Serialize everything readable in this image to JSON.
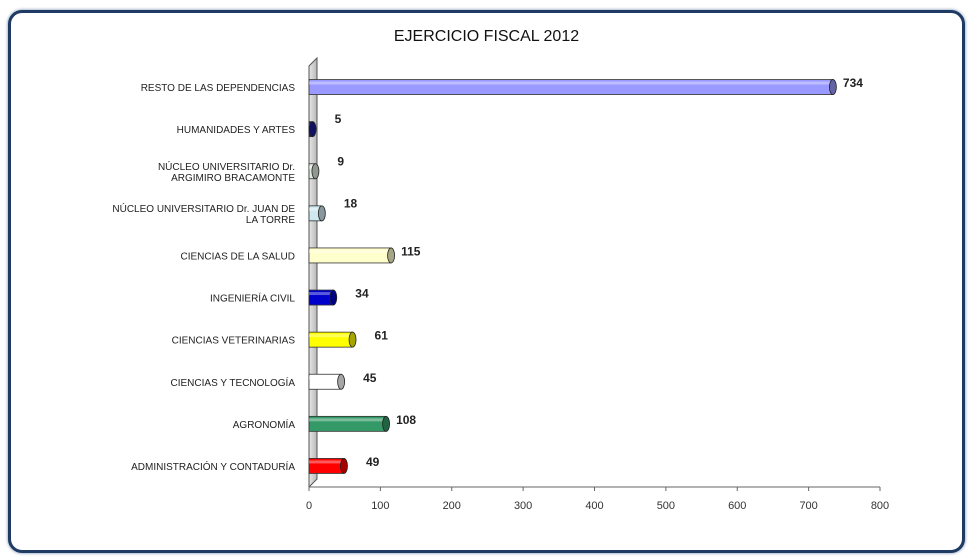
{
  "chart_data": {
    "type": "bar",
    "orientation": "horizontal",
    "title": "EJERCICIO FISCAL 2012",
    "categories": [
      [
        "RESTO DE LAS  DEPENDENCIAS"
      ],
      [
        "HUMANIDADES Y ARTES"
      ],
      [
        "NÚCLEO UNIVERSITARIO Dr.",
        "ARGIMIRO BRACAMONTE"
      ],
      [
        "NÚCLEO UNIVERSITARIO Dr. JUAN  DE",
        "LA TORRE"
      ],
      [
        "CIENCIAS DE LA SALUD"
      ],
      [
        "INGENIERÍA CIVIL"
      ],
      [
        "CIENCIAS VETERINARIAS"
      ],
      [
        "CIENCIAS Y TECNOLOGÍA"
      ],
      [
        "AGRONOMÍA"
      ],
      [
        "ADMINISTRACIÓN Y CONTADURÍA"
      ]
    ],
    "values": [
      734,
      5,
      9,
      18,
      115,
      34,
      61,
      45,
      108,
      49
    ],
    "colors": [
      "#9999ff",
      "#1a1a99",
      "#dfeadf",
      "#cfe8f0",
      "#ffffcc",
      "#0000cc",
      "#ffff00",
      "#ffffff",
      "#339966",
      "#ff0000"
    ],
    "xlim": [
      0,
      800
    ],
    "xticks": [
      0,
      100,
      200,
      300,
      400,
      500,
      600,
      700,
      800
    ],
    "grid": false,
    "legend": "none"
  }
}
